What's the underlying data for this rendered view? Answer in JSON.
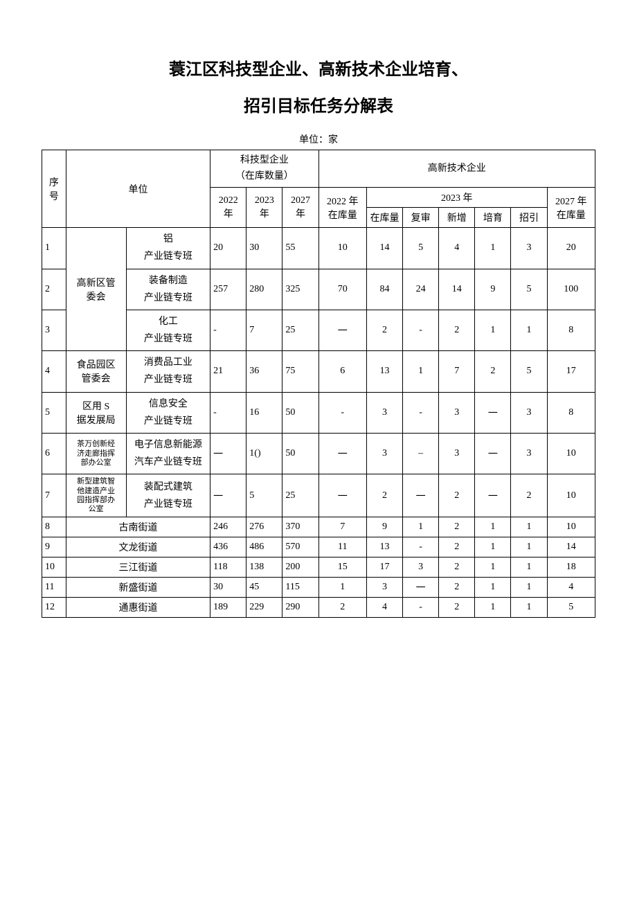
{
  "title": "蓑江区科技型企业、高新技术企业培育、",
  "subtitle": "招引目标任务分解表",
  "unit_label": "单位：家",
  "headers": {
    "seq": "序\n号",
    "unit": "单位",
    "tech_group": "科技型企业\n（在库数量）",
    "hitech_group": "高新技术企业",
    "y2022": "2022\n年",
    "y2023": "2023\n年",
    "y2027": "2027\n年",
    "stock2022": "2022 年\n在库量",
    "y2023_group": "2023 年",
    "stock2027": "2027 年\n在库量",
    "stock": "在库量",
    "review": "复审",
    "new": "新增",
    "cultivate": "培育",
    "attract": "招引"
  },
  "rows": [
    {
      "seq": "1",
      "unit1": "高新区管\n委会",
      "unit1_rowspan": 3,
      "unit2": "铝\n产业链专班",
      "c": [
        "20",
        "30",
        "55",
        "10",
        "14",
        "5",
        "4",
        "1",
        "3",
        "20"
      ]
    },
    {
      "seq": "2",
      "unit2": "装备制造\n产业链专班",
      "c": [
        "257",
        "280",
        "325",
        "70",
        "84",
        "24",
        "14",
        "9",
        "5",
        "100"
      ]
    },
    {
      "seq": "3",
      "unit2": "化工\n产业链专班",
      "c": [
        "-",
        "7",
        "25",
        "一",
        "2",
        "-",
        "2",
        "1",
        "1",
        "8"
      ]
    },
    {
      "seq": "4",
      "unit1": "食品园区\n管委会",
      "unit1_rowspan": 1,
      "unit2": "消费品工业\n产业链专班",
      "c": [
        "21",
        "36",
        "75",
        "6",
        "13",
        "1",
        "7",
        "2",
        "5",
        "17"
      ]
    },
    {
      "seq": "5",
      "unit1": "区用 S\n据发展局",
      "unit1_rowspan": 1,
      "unit2": "信息安全\n产业链专班",
      "c": [
        "-",
        "16",
        "50",
        "-",
        "3",
        "-",
        "3",
        "一",
        "3",
        "8"
      ]
    },
    {
      "seq": "6",
      "unit1": "茶万创新经\n济走廊指挥\n部办公室",
      "unit1_small": true,
      "unit1_rowspan": 1,
      "unit2": "电子信息新能源\n汽车产业链专班",
      "c": [
        "一",
        "1()",
        "50",
        "一",
        "3",
        "–",
        "3",
        "一",
        "3",
        "10"
      ]
    },
    {
      "seq": "7",
      "unit1": "新型建筑智\n他建造产业\n园指挥部办\n公室",
      "unit1_small": true,
      "unit1_rowspan": 1,
      "unit2": "装配式建筑\n产业链专班",
      "c": [
        "一",
        "5",
        "25",
        "一",
        "2",
        "一",
        "2",
        "一",
        "2",
        "10"
      ]
    },
    {
      "seq": "8",
      "unit_full": "古南街道",
      "c": [
        "246",
        "276",
        "370",
        "7",
        "9",
        "1",
        "2",
        "1",
        "1",
        "10"
      ]
    },
    {
      "seq": "9",
      "unit_full": "文龙街道",
      "c": [
        "436",
        "486",
        "570",
        "11",
        "13",
        "-",
        "2",
        "1",
        "1",
        "14"
      ]
    },
    {
      "seq": "10",
      "unit_full": "三江街道",
      "c": [
        "118",
        "138",
        "200",
        "15",
        "17",
        "3",
        "2",
        "1",
        "1",
        "18"
      ]
    },
    {
      "seq": "11",
      "unit_full": "新盛街道",
      "c": [
        "30",
        "45",
        "115",
        "1",
        "3",
        "一",
        "2",
        "1",
        "1",
        "4"
      ]
    },
    {
      "seq": "12",
      "unit_full": "通惠街道",
      "c": [
        "189",
        "229",
        "290",
        "2",
        "4",
        "-",
        "2",
        "1",
        "1",
        "5"
      ]
    }
  ],
  "styling": {
    "type": "table",
    "background_color": "#ffffff",
    "border_color": "#000000",
    "font_family": "SimSun",
    "title_fontsize": 24,
    "body_fontsize": 14,
    "small_fontsize": 11,
    "col_widths_pct": [
      4,
      10,
      14,
      6,
      6,
      6,
      8,
      6,
      6,
      6,
      6,
      6,
      6,
      8
    ],
    "alignment": {
      "default": "center",
      "col_2022": "left",
      "col_2023": "left",
      "col_2027": "left"
    }
  }
}
